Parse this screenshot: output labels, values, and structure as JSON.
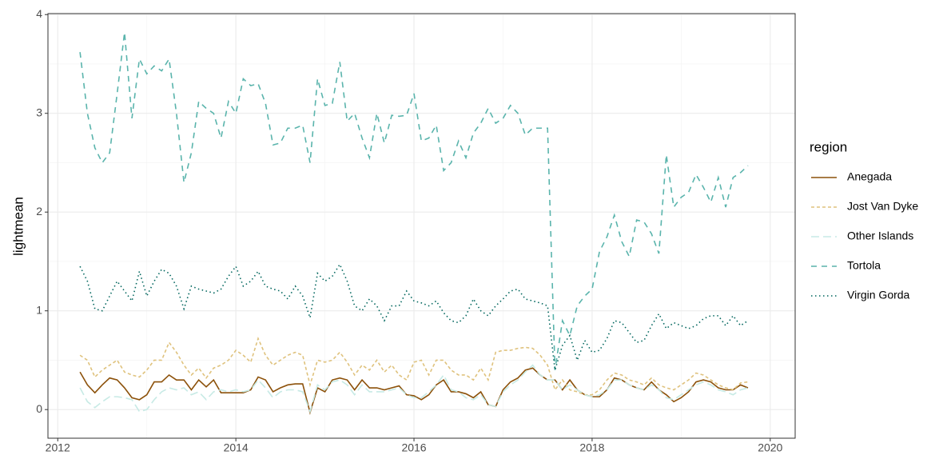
{
  "chart_data": {
    "type": "line",
    "y_label": "lightmean",
    "legend_title": "region",
    "legend_position": "right",
    "grid": true,
    "xlim": [
      2011.89,
      2020.28
    ],
    "ylim": [
      -0.29,
      4.01
    ],
    "xticks": [
      2012,
      2014,
      2016,
      2018,
      2020
    ],
    "yticks": [
      0,
      1,
      2,
      3,
      4
    ],
    "x": [
      2012.25,
      2012.333,
      2012.417,
      2012.5,
      2012.583,
      2012.667,
      2012.75,
      2012.833,
      2012.917,
      2013,
      2013.083,
      2013.167,
      2013.25,
      2013.333,
      2013.417,
      2013.5,
      2013.583,
      2013.667,
      2013.75,
      2013.833,
      2013.917,
      2014,
      2014.083,
      2014.167,
      2014.25,
      2014.333,
      2014.417,
      2014.5,
      2014.583,
      2014.667,
      2014.75,
      2014.833,
      2014.917,
      2015,
      2015.083,
      2015.167,
      2015.25,
      2015.333,
      2015.417,
      2015.5,
      2015.583,
      2015.667,
      2015.75,
      2015.833,
      2015.917,
      2016,
      2016.083,
      2016.167,
      2016.25,
      2016.333,
      2016.417,
      2016.5,
      2016.583,
      2016.667,
      2016.75,
      2016.833,
      2016.917,
      2017,
      2017.083,
      2017.167,
      2017.25,
      2017.333,
      2017.417,
      2017.5,
      2017.583,
      2017.667,
      2017.75,
      2017.833,
      2017.917,
      2018,
      2018.083,
      2018.167,
      2018.25,
      2018.333,
      2018.417,
      2018.5,
      2018.583,
      2018.667,
      2018.75,
      2018.833,
      2018.917,
      2019,
      2019.083,
      2019.167,
      2019.25,
      2019.333,
      2019.417,
      2019.5,
      2019.583,
      2019.667,
      2019.75
    ],
    "series": [
      {
        "name": "Anegada",
        "color": "#8c510a",
        "linestyle": "solid",
        "values": [
          0.38,
          0.25,
          0.17,
          0.25,
          0.32,
          0.3,
          0.22,
          0.12,
          0.1,
          0.15,
          0.28,
          0.28,
          0.35,
          0.3,
          0.3,
          0.2,
          0.3,
          0.23,
          0.3,
          0.17,
          0.17,
          0.17,
          0.17,
          0.2,
          0.33,
          0.3,
          0.18,
          0.22,
          0.25,
          0.26,
          0.26,
          -0.03,
          0.22,
          0.18,
          0.3,
          0.32,
          0.3,
          0.2,
          0.3,
          0.22,
          0.22,
          0.2,
          0.22,
          0.24,
          0.15,
          0.14,
          0.1,
          0.15,
          0.25,
          0.3,
          0.18,
          0.18,
          0.16,
          0.12,
          0.18,
          0.05,
          0.03,
          0.2,
          0.28,
          0.32,
          0.4,
          0.42,
          0.35,
          0.3,
          0.3,
          0.2,
          0.3,
          0.2,
          0.15,
          0.13,
          0.13,
          0.2,
          0.32,
          0.3,
          0.25,
          0.22,
          0.2,
          0.28,
          0.2,
          0.15,
          0.08,
          0.12,
          0.18,
          0.28,
          0.3,
          0.28,
          0.22,
          0.2,
          0.2,
          0.25,
          0.22
        ]
      },
      {
        "name": "Jost Van Dyke",
        "color": "#dfc27d",
        "linestyle": "shortdash",
        "values": [
          0.55,
          0.5,
          0.33,
          0.4,
          0.45,
          0.5,
          0.38,
          0.35,
          0.33,
          0.4,
          0.5,
          0.5,
          0.68,
          0.58,
          0.45,
          0.35,
          0.42,
          0.32,
          0.42,
          0.45,
          0.5,
          0.6,
          0.55,
          0.48,
          0.72,
          0.55,
          0.45,
          0.5,
          0.55,
          0.58,
          0.55,
          0.25,
          0.5,
          0.48,
          0.5,
          0.58,
          0.48,
          0.35,
          0.45,
          0.4,
          0.5,
          0.38,
          0.45,
          0.35,
          0.3,
          0.48,
          0.5,
          0.35,
          0.5,
          0.5,
          0.4,
          0.35,
          0.35,
          0.3,
          0.42,
          0.3,
          0.58,
          0.6,
          0.6,
          0.62,
          0.63,
          0.62,
          0.55,
          0.45,
          0.2,
          0.3,
          0.2,
          0.18,
          0.15,
          0.15,
          0.2,
          0.3,
          0.37,
          0.35,
          0.3,
          0.28,
          0.25,
          0.32,
          0.25,
          0.22,
          0.2,
          0.25,
          0.3,
          0.37,
          0.35,
          0.3,
          0.25,
          0.22,
          0.2,
          0.27,
          0.28
        ]
      },
      {
        "name": "Other Islands",
        "color": "#c7eae5",
        "linestyle": "longdash",
        "values": [
          0.22,
          0.08,
          0.02,
          0.08,
          0.13,
          0.13,
          0.12,
          0.1,
          -0.02,
          0.0,
          0.1,
          0.18,
          0.22,
          0.2,
          0.22,
          0.15,
          0.18,
          0.1,
          0.18,
          0.2,
          0.18,
          0.2,
          0.18,
          0.2,
          0.3,
          0.22,
          0.12,
          0.18,
          0.2,
          0.2,
          0.18,
          -0.02,
          0.25,
          0.2,
          0.28,
          0.3,
          0.25,
          0.15,
          0.25,
          0.18,
          0.18,
          0.18,
          0.2,
          0.22,
          0.15,
          0.12,
          0.12,
          0.18,
          0.25,
          0.35,
          0.2,
          0.18,
          0.12,
          0.1,
          0.15,
          0.05,
          0.03,
          0.18,
          0.25,
          0.3,
          0.38,
          0.45,
          0.35,
          0.3,
          0.3,
          0.2,
          0.25,
          0.2,
          0.15,
          0.13,
          0.15,
          0.2,
          0.3,
          0.3,
          0.25,
          0.22,
          0.2,
          0.25,
          0.2,
          0.12,
          0.1,
          0.15,
          0.2,
          0.25,
          0.28,
          0.25,
          0.2,
          0.18,
          0.15,
          0.2,
          0.22
        ]
      },
      {
        "name": "Tortola",
        "color": "#5ab4ac",
        "linestyle": "dashed",
        "values": [
          3.62,
          3.0,
          2.65,
          2.5,
          2.6,
          3.2,
          3.82,
          2.95,
          3.55,
          3.4,
          3.48,
          3.43,
          3.55,
          3.0,
          2.3,
          2.6,
          3.12,
          3.05,
          3.0,
          2.75,
          3.12,
          3.0,
          3.35,
          3.28,
          3.3,
          3.1,
          2.68,
          2.7,
          2.85,
          2.85,
          2.88,
          2.5,
          3.35,
          3.08,
          3.1,
          3.52,
          2.92,
          3.0,
          2.75,
          2.55,
          3.0,
          2.7,
          2.98,
          2.97,
          2.98,
          3.2,
          2.72,
          2.75,
          2.88,
          2.42,
          2.5,
          2.72,
          2.55,
          2.8,
          2.9,
          3.05,
          2.9,
          2.95,
          3.08,
          3.0,
          2.78,
          2.85,
          2.85,
          2.85,
          0.4,
          0.9,
          0.75,
          1.05,
          1.15,
          1.22,
          1.6,
          1.75,
          1.97,
          1.7,
          1.55,
          1.92,
          1.9,
          1.78,
          1.58,
          2.58,
          2.05,
          2.15,
          2.2,
          2.38,
          2.25,
          2.1,
          2.35,
          2.05,
          2.35,
          2.4,
          2.47
        ]
      },
      {
        "name": "Virgin Gorda",
        "color": "#01665e",
        "linestyle": "dotted",
        "values": [
          1.45,
          1.3,
          1.02,
          1.0,
          1.15,
          1.3,
          1.2,
          1.1,
          1.4,
          1.15,
          1.3,
          1.42,
          1.38,
          1.25,
          1.02,
          1.25,
          1.22,
          1.2,
          1.18,
          1.22,
          1.35,
          1.45,
          1.25,
          1.3,
          1.4,
          1.25,
          1.22,
          1.2,
          1.12,
          1.25,
          1.15,
          0.93,
          1.38,
          1.3,
          1.35,
          1.47,
          1.3,
          1.05,
          1.0,
          1.12,
          1.05,
          0.9,
          1.05,
          1.05,
          1.2,
          1.1,
          1.08,
          1.05,
          1.1,
          0.98,
          0.9,
          0.88,
          0.95,
          1.12,
          1.0,
          0.95,
          1.05,
          1.12,
          1.2,
          1.22,
          1.12,
          1.1,
          1.08,
          1.05,
          0.4,
          0.65,
          0.75,
          0.5,
          0.7,
          0.58,
          0.6,
          0.72,
          0.9,
          0.88,
          0.78,
          0.68,
          0.7,
          0.85,
          0.97,
          0.82,
          0.88,
          0.85,
          0.82,
          0.85,
          0.92,
          0.95,
          0.95,
          0.85,
          0.95,
          0.85,
          0.9
        ]
      }
    ]
  }
}
